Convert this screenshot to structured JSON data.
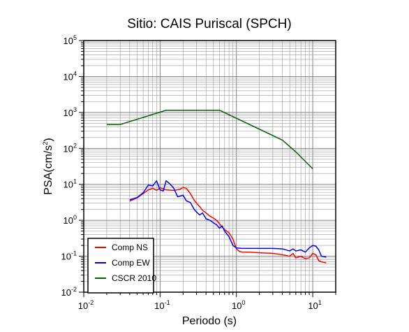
{
  "chart_data": {
    "type": "line",
    "title": "Sitio: CAIS Puriscal (SPCH)",
    "xlabel": "Periodo (s)",
    "ylabel_main": "PSA(cm/s",
    "ylabel_sup": "2",
    "ylabel_close": ")",
    "x_scale": "log",
    "y_scale": "log",
    "xlim": [
      0.01,
      20
    ],
    "ylim": [
      0.01,
      100000
    ],
    "x_ticks": [
      {
        "base": "10",
        "exp": "-2",
        "value": 0.01
      },
      {
        "base": "10",
        "exp": "-1",
        "value": 0.1
      },
      {
        "base": "10",
        "exp": "0",
        "value": 1
      },
      {
        "base": "10",
        "exp": "1",
        "value": 10
      }
    ],
    "y_ticks": [
      {
        "base": "10",
        "exp": "-2",
        "value": 0.01
      },
      {
        "base": "10",
        "exp": "-1",
        "value": 0.1
      },
      {
        "base": "10",
        "exp": "0",
        "value": 1
      },
      {
        "base": "10",
        "exp": "1",
        "value": 10
      },
      {
        "base": "10",
        "exp": "2",
        "value": 100
      },
      {
        "base": "10",
        "exp": "3",
        "value": 1000
      },
      {
        "base": "10",
        "exp": "4",
        "value": 10000
      },
      {
        "base": "10",
        "exp": "5",
        "value": 100000
      }
    ],
    "grid": true,
    "legend_position": "bottom-left",
    "series": [
      {
        "name": "Comp NS",
        "color": "#ff0000",
        "points": [
          [
            0.04,
            3.4
          ],
          [
            0.05,
            4.2
          ],
          [
            0.06,
            5.5
          ],
          [
            0.07,
            7.0
          ],
          [
            0.08,
            7.8
          ],
          [
            0.09,
            6.8
          ],
          [
            0.1,
            8.0
          ],
          [
            0.12,
            7.0
          ],
          [
            0.15,
            6.8
          ],
          [
            0.18,
            7.2
          ],
          [
            0.2,
            8.2
          ],
          [
            0.22,
            7.8
          ],
          [
            0.25,
            5.5
          ],
          [
            0.28,
            3.6
          ],
          [
            0.3,
            3.0
          ],
          [
            0.33,
            2.4
          ],
          [
            0.36,
            1.9
          ],
          [
            0.4,
            1.6
          ],
          [
            0.45,
            1.3
          ],
          [
            0.5,
            1.15
          ],
          [
            0.55,
            1.0
          ],
          [
            0.6,
            0.8
          ],
          [
            0.65,
            0.65
          ],
          [
            0.7,
            0.55
          ],
          [
            0.8,
            0.45
          ],
          [
            0.9,
            0.3
          ],
          [
            1.0,
            0.16
          ],
          [
            1.1,
            0.135
          ],
          [
            1.2,
            0.13
          ],
          [
            1.5,
            0.13
          ],
          [
            2.0,
            0.125
          ],
          [
            3.0,
            0.12
          ],
          [
            4.0,
            0.11
          ],
          [
            5.0,
            0.1
          ],
          [
            5.5,
            0.12
          ],
          [
            6.0,
            0.09
          ],
          [
            7.0,
            0.1
          ],
          [
            8.0,
            0.085
          ],
          [
            9.0,
            0.09
          ],
          [
            10.0,
            0.12
          ],
          [
            11.0,
            0.11
          ],
          [
            12.0,
            0.075
          ],
          [
            13.0,
            0.07
          ],
          [
            15.0,
            0.065
          ]
        ]
      },
      {
        "name": "Comp EW",
        "color": "#0000ff",
        "points": [
          [
            0.04,
            3.7
          ],
          [
            0.05,
            4.3
          ],
          [
            0.06,
            5.8
          ],
          [
            0.07,
            9.5
          ],
          [
            0.08,
            9.0
          ],
          [
            0.09,
            12.5
          ],
          [
            0.1,
            7.0
          ],
          [
            0.11,
            6.5
          ],
          [
            0.12,
            12.5
          ],
          [
            0.13,
            11.0
          ],
          [
            0.15,
            8.0
          ],
          [
            0.17,
            4.5
          ],
          [
            0.19,
            4.8
          ],
          [
            0.2,
            5.0
          ],
          [
            0.22,
            3.5
          ],
          [
            0.25,
            3.1
          ],
          [
            0.28,
            2.0
          ],
          [
            0.3,
            1.7
          ],
          [
            0.33,
            1.4
          ],
          [
            0.36,
            1.6
          ],
          [
            0.4,
            1.1
          ],
          [
            0.45,
            1.0
          ],
          [
            0.5,
            0.85
          ],
          [
            0.55,
            0.75
          ],
          [
            0.6,
            0.6
          ],
          [
            0.65,
            0.7
          ],
          [
            0.7,
            0.5
          ],
          [
            0.8,
            0.35
          ],
          [
            0.9,
            0.2
          ],
          [
            1.0,
            0.17
          ],
          [
            1.2,
            0.165
          ],
          [
            1.5,
            0.165
          ],
          [
            2.0,
            0.165
          ],
          [
            3.0,
            0.165
          ],
          [
            4.0,
            0.16
          ],
          [
            5.0,
            0.14
          ],
          [
            5.5,
            0.16
          ],
          [
            6.0,
            0.14
          ],
          [
            7.0,
            0.15
          ],
          [
            8.0,
            0.13
          ],
          [
            9.0,
            0.17
          ],
          [
            10.0,
            0.2
          ],
          [
            11.0,
            0.19
          ],
          [
            12.0,
            0.15
          ],
          [
            13.0,
            0.1
          ],
          [
            15.0,
            0.095
          ]
        ]
      },
      {
        "name": "CSCR 2010",
        "color": "#006400",
        "points": [
          [
            0.02,
            460
          ],
          [
            0.03,
            460
          ],
          [
            0.12,
            1150
          ],
          [
            0.6,
            1150
          ],
          [
            4.0,
            170
          ],
          [
            6.0,
            80
          ],
          [
            10.0,
            27
          ]
        ]
      }
    ]
  }
}
